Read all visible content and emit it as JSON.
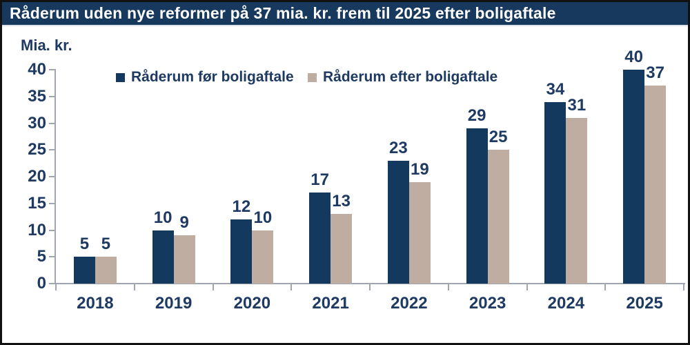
{
  "chart_data": {
    "type": "bar",
    "title": "Råderum uden nye reformer på 37 mia. kr. frem til 2025 efter boligaftale",
    "ylabel": "Mia. kr.",
    "categories": [
      "2018",
      "2019",
      "2020",
      "2021",
      "2022",
      "2023",
      "2024",
      "2025"
    ],
    "series": [
      {
        "name": "Råderum før boligaftale",
        "slug": "for-boligaftale",
        "color": "#14395f",
        "values": [
          5,
          10,
          12,
          17,
          23,
          29,
          34,
          40
        ]
      },
      {
        "name": "Råderum efter boligaftale",
        "slug": "efter-boligaftale",
        "color": "#c0ada1",
        "values": [
          5,
          9,
          10,
          13,
          19,
          25,
          31,
          37
        ]
      }
    ],
    "ylim": [
      0,
      40
    ],
    "yticks": [
      0,
      5,
      10,
      15,
      20,
      25,
      30,
      35,
      40
    ],
    "grid": false,
    "legend_position": "top-inside",
    "data_labels": true
  },
  "theme": {
    "title_bar_bg": "#16395d",
    "title_text_color": "#ffffff",
    "label_text_color": "#1e3a63",
    "axis_color": "#9fa6b0",
    "frame_border_color": "#111111",
    "background": "#ffffff"
  }
}
